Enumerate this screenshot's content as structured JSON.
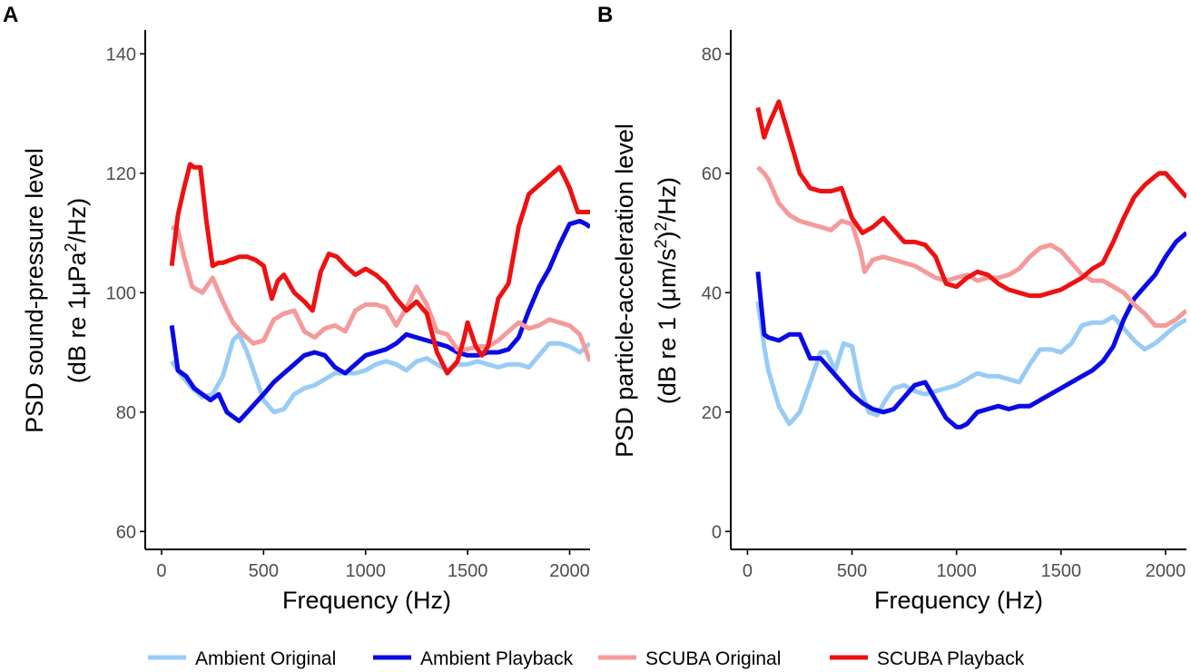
{
  "colors": {
    "ambient_original": "#99CCF5",
    "ambient_playback": "#0A0AE6",
    "scuba_original": "#F59A9A",
    "scuba_playback": "#EE1111"
  },
  "legend": [
    {
      "label": "Ambient Original",
      "color_key": "ambient_original"
    },
    {
      "label": "Ambient Playback",
      "color_key": "ambient_playback"
    },
    {
      "label": "SCUBA Original",
      "color_key": "scuba_original"
    },
    {
      "label": "SCUBA Playback",
      "color_key": "scuba_playback"
    }
  ],
  "chart_data": [
    {
      "panel_label": "A",
      "type": "line",
      "xlabel": "Frequency (Hz)",
      "ylabel_line1": "PSD sound-pressure level",
      "ylabel_line2_prefix": "(dB re 1",
      "ylabel_line2_mu": "μ",
      "ylabel_line2_unit": "Pa",
      "ylabel_line2_sup": "2",
      "ylabel_line2_suffix": "/Hz)",
      "xlim": [
        -80,
        2100
      ],
      "ylim": [
        57,
        144
      ],
      "xticks": [
        0,
        500,
        1000,
        1500,
        2000
      ],
      "xtick_labels": [
        "0",
        "500",
        "1000",
        "1500",
        "2000"
      ],
      "yticks": [
        60,
        80,
        100,
        120,
        140
      ],
      "ytick_labels": [
        "60",
        "80",
        "100",
        "120",
        "140"
      ],
      "series": [
        {
          "name": "Ambient Original",
          "color_key": "ambient_original",
          "x": [
            50,
            100,
            150,
            200,
            250,
            300,
            350,
            380,
            420,
            460,
            500,
            550,
            600,
            650,
            700,
            750,
            800,
            850,
            900,
            950,
            1000,
            1050,
            1100,
            1150,
            1200,
            1250,
            1300,
            1350,
            1400,
            1450,
            1500,
            1550,
            1600,
            1650,
            1700,
            1750,
            1800,
            1850,
            1900,
            1950,
            2000,
            2050,
            2100
          ],
          "y": [
            88.5,
            86,
            84,
            82.5,
            83,
            86,
            92,
            93,
            90,
            86,
            82,
            80,
            80.5,
            83,
            84,
            84.5,
            85.5,
            86.5,
            86.5,
            86.5,
            87,
            88,
            88.5,
            88,
            87,
            88.5,
            89,
            88,
            87,
            88,
            88,
            88.5,
            88,
            87.5,
            88,
            88,
            87.5,
            89.5,
            91.5,
            91.5,
            91,
            90,
            91.5
          ]
        },
        {
          "name": "Ambient Playback",
          "color_key": "ambient_playback",
          "x": [
            50,
            80,
            120,
            160,
            200,
            240,
            280,
            320,
            360,
            380,
            420,
            460,
            500,
            550,
            600,
            650,
            700,
            750,
            800,
            850,
            900,
            950,
            1000,
            1050,
            1100,
            1150,
            1200,
            1250,
            1300,
            1350,
            1400,
            1450,
            1500,
            1550,
            1600,
            1650,
            1700,
            1750,
            1800,
            1850,
            1900,
            1950,
            2000,
            2050,
            2080,
            2100
          ],
          "y": [
            94.5,
            87,
            86,
            84,
            83,
            82,
            83,
            80,
            79,
            78.5,
            80,
            81.5,
            83,
            85,
            86.5,
            88,
            89.5,
            90,
            89.5,
            87.5,
            86.5,
            88,
            89.5,
            90,
            90.5,
            91.5,
            93,
            92.5,
            92,
            91.5,
            91,
            90,
            89.5,
            89.5,
            90,
            90,
            90.5,
            92.5,
            97,
            101,
            104,
            108,
            111.5,
            112,
            111.5,
            111
          ]
        },
        {
          "name": "SCUBA Original",
          "color_key": "scuba_original",
          "x": [
            50,
            80,
            110,
            150,
            200,
            250,
            300,
            350,
            400,
            450,
            500,
            550,
            600,
            650,
            700,
            750,
            800,
            850,
            900,
            950,
            1000,
            1050,
            1100,
            1150,
            1200,
            1250,
            1300,
            1350,
            1400,
            1450,
            1500,
            1550,
            1600,
            1650,
            1700,
            1750,
            1800,
            1850,
            1900,
            1950,
            2000,
            2050,
            2100
          ],
          "y": [
            111,
            110.5,
            106,
            101,
            100,
            102.5,
            98.5,
            95,
            93,
            91.5,
            92,
            95.5,
            96.5,
            97,
            93.5,
            92.5,
            94,
            94.5,
            93.5,
            97,
            98,
            98,
            97.5,
            94.5,
            97.5,
            101,
            98,
            93.5,
            93,
            90.5,
            90.5,
            91,
            91,
            92,
            93.5,
            95,
            94,
            94.5,
            95.5,
            95,
            94.5,
            93,
            88.5
          ]
        },
        {
          "name": "SCUBA Playback",
          "color_key": "scuba_playback",
          "x": [
            50,
            80,
            110,
            140,
            160,
            190,
            220,
            250,
            280,
            300,
            340,
            380,
            420,
            460,
            500,
            540,
            570,
            600,
            650,
            700,
            740,
            780,
            820,
            860,
            900,
            950,
            1000,
            1050,
            1100,
            1150,
            1200,
            1250,
            1300,
            1350,
            1400,
            1450,
            1480,
            1500,
            1540,
            1570,
            1600,
            1650,
            1700,
            1750,
            1800,
            1850,
            1900,
            1950,
            1980,
            2000,
            2040,
            2080,
            2100
          ],
          "y": [
            104.5,
            113,
            117.5,
            121.5,
            121,
            121,
            112,
            104.5,
            105,
            105,
            105.5,
            106,
            106,
            105.5,
            104.5,
            99,
            102,
            103,
            100,
            98.5,
            97,
            103.5,
            106.5,
            106,
            104.5,
            103,
            104,
            103,
            101.5,
            99,
            97,
            98.5,
            96.5,
            90,
            86.5,
            88.5,
            92,
            95,
            91,
            89.5,
            91,
            99,
            101.5,
            111,
            116.5,
            118,
            119.5,
            121,
            119,
            117.5,
            113.5,
            113.5,
            113.5
          ]
        }
      ]
    },
    {
      "panel_label": "B",
      "type": "line",
      "xlabel": "Frequency (Hz)",
      "ylabel_line1": "PSD particle-acceleration level",
      "ylabel_line2_prefix": "(dB re 1 (",
      "ylabel_line2_mu": "μ",
      "ylabel_line2_unit": "m/s",
      "ylabel_line2_sup": "2",
      "ylabel_line2_mid": ")",
      "ylabel_line2_sup2": "2",
      "ylabel_line2_suffix": "/Hz)",
      "xlim": [
        -80,
        2100
      ],
      "ylim": [
        -3,
        84
      ],
      "xticks": [
        0,
        500,
        1000,
        1500,
        2000
      ],
      "xtick_labels": [
        "0",
        "500",
        "1000",
        "1500",
        "2000"
      ],
      "yticks": [
        0,
        20,
        40,
        60,
        80
      ],
      "ytick_labels": [
        "0",
        "20",
        "40",
        "60",
        "80"
      ],
      "series": [
        {
          "name": "Ambient Original",
          "color_key": "ambient_original",
          "x": [
            50,
            80,
            100,
            150,
            200,
            250,
            300,
            350,
            380,
            420,
            460,
            500,
            540,
            580,
            620,
            660,
            700,
            750,
            800,
            850,
            900,
            950,
            1000,
            1050,
            1100,
            1150,
            1200,
            1250,
            1300,
            1350,
            1400,
            1450,
            1500,
            1550,
            1600,
            1650,
            1700,
            1750,
            1800,
            1850,
            1900,
            1950,
            2000,
            2050,
            2100
          ],
          "y": [
            38.5,
            31,
            27,
            21,
            18,
            20,
            25,
            30,
            30,
            27,
            31.5,
            31,
            24,
            20,
            19.5,
            22,
            24,
            24.5,
            23.5,
            23,
            23.5,
            24,
            24.5,
            25.5,
            26.5,
            26,
            26,
            25.5,
            25,
            28,
            30.5,
            30.5,
            30,
            31.5,
            34.5,
            35,
            35,
            36,
            34,
            32,
            30.5,
            31.5,
            33,
            34.5,
            35.5
          ]
        },
        {
          "name": "Ambient Playback",
          "color_key": "ambient_playback",
          "x": [
            50,
            80,
            100,
            150,
            200,
            250,
            300,
            350,
            400,
            450,
            500,
            550,
            600,
            650,
            700,
            750,
            800,
            850,
            900,
            950,
            1000,
            1020,
            1050,
            1100,
            1150,
            1200,
            1250,
            1300,
            1350,
            1400,
            1450,
            1500,
            1550,
            1600,
            1650,
            1700,
            1750,
            1800,
            1850,
            1900,
            1950,
            2000,
            2050,
            2100
          ],
          "y": [
            43.5,
            33,
            32.5,
            32,
            33,
            33,
            29,
            29,
            27,
            25,
            23,
            21.5,
            20.5,
            20,
            20.5,
            22.5,
            24.5,
            25,
            22,
            19,
            17.5,
            17.5,
            18,
            20,
            20.5,
            21,
            20.5,
            21,
            21,
            22,
            23,
            24,
            25,
            26,
            27,
            28.5,
            31,
            35.5,
            39,
            41,
            43,
            46,
            48.5,
            50
          ]
        },
        {
          "name": "SCUBA Original",
          "color_key": "scuba_original",
          "x": [
            50,
            80,
            100,
            150,
            200,
            250,
            300,
            350,
            400,
            450,
            500,
            540,
            560,
            600,
            650,
            700,
            750,
            800,
            850,
            900,
            950,
            1000,
            1050,
            1100,
            1150,
            1200,
            1250,
            1300,
            1350,
            1400,
            1450,
            1500,
            1550,
            1600,
            1650,
            1700,
            1750,
            1800,
            1850,
            1900,
            1950,
            2000,
            2050,
            2100
          ],
          "y": [
            61,
            60,
            59,
            55,
            53,
            52,
            51.5,
            51,
            50.5,
            52,
            51.5,
            47,
            43.5,
            45.5,
            46,
            45.5,
            45,
            44.5,
            43.5,
            42.5,
            42,
            42.5,
            43,
            42,
            42.5,
            42.5,
            43,
            44,
            46,
            47.5,
            48,
            47,
            45,
            43,
            42,
            42,
            41,
            40,
            38,
            36.5,
            34.5,
            34.5,
            35.5,
            37
          ]
        },
        {
          "name": "SCUBA Playback",
          "color_key": "scuba_playback",
          "x": [
            50,
            80,
            100,
            150,
            200,
            250,
            300,
            350,
            400,
            450,
            500,
            550,
            600,
            650,
            700,
            750,
            800,
            850,
            900,
            950,
            1000,
            1050,
            1100,
            1150,
            1200,
            1250,
            1300,
            1350,
            1400,
            1450,
            1500,
            1550,
            1600,
            1650,
            1700,
            1750,
            1800,
            1850,
            1900,
            1950,
            1970,
            2000,
            2050,
            2100
          ],
          "y": [
            71,
            66,
            68,
            72,
            66,
            60,
            57.5,
            57,
            57,
            57.5,
            52.5,
            50,
            51,
            52.5,
            50.5,
            48.5,
            48.5,
            48,
            46,
            41.5,
            41,
            42.5,
            43.5,
            43,
            41.5,
            40.5,
            40,
            39.5,
            39.5,
            40,
            40.5,
            41.5,
            42.5,
            44,
            45,
            48.5,
            52.5,
            56,
            58,
            59.5,
            60,
            60,
            58,
            56
          ]
        }
      ]
    }
  ]
}
